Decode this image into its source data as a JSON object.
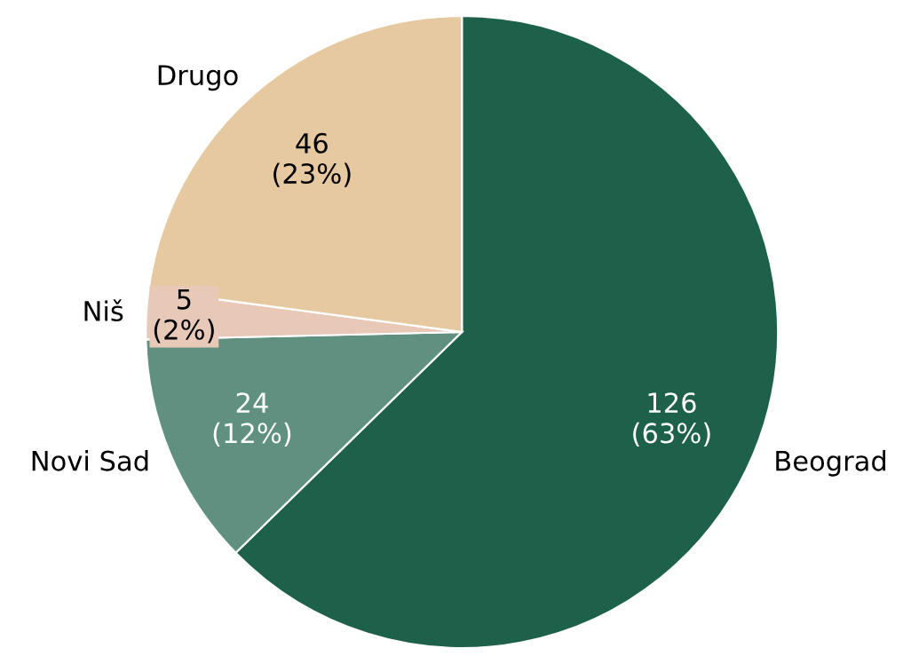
{
  "chart_data": {
    "type": "pie",
    "categories": [
      "Beograd",
      "Novi Sad",
      "Niš",
      "Drugo"
    ],
    "values": [
      126,
      24,
      5,
      46
    ],
    "colors": [
      "#1e614a",
      "#5f9080",
      "#e8c9b8",
      "#e6c9a0"
    ],
    "value_labels": [
      "126\n(63%)",
      "24\n(12%)",
      "5\n(2%)",
      "46\n(23%)"
    ]
  }
}
